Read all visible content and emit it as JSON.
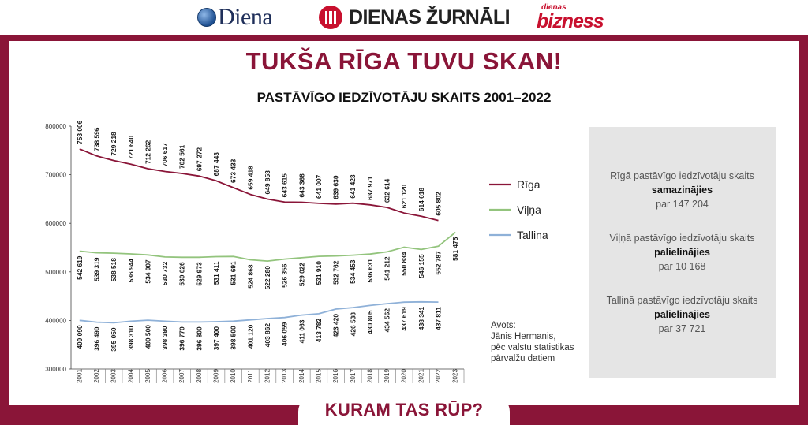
{
  "header": {
    "brands": [
      "Diena",
      "DIENAS ŽURNĀLI",
      "dienas",
      "bizness"
    ]
  },
  "title": "TUKŠA RĪGA TUVU SKAN!",
  "subtitle": "PASTĀVĪGO IEDZĪVOTĀJU SKAITS 2001–2022",
  "footer_tab": "KURAM TAS RŪP?",
  "source": [
    "Avots:",
    "Jānis Hermanis,",
    "pēc valstu statistikas",
    "pārvalžu datiem"
  ],
  "info": [
    {
      "line1": "Rīgā pastāvīgo iedzīvotāju skaits",
      "line2": "samazinājies",
      "line3": "par 147 204"
    },
    {
      "line1": "Viļņā pastāvīgo iedzīvotāju skaits",
      "line2": "palielinājies",
      "line3": "par 10 168"
    },
    {
      "line1": "Tallinā pastāvīgo iedzīvotāju skaits",
      "line2": "palielinājies",
      "line3": "par 37 721"
    }
  ],
  "chart_data": {
    "type": "line",
    "title": "PASTĀVĪGO IEDZĪVOTĀJU SKAITS 2001–2022",
    "x": [
      "2001",
      "2002",
      "2003",
      "2004",
      "2005",
      "2006",
      "2007",
      "2008",
      "2009",
      "2010",
      "2011",
      "2012",
      "2013",
      "2014",
      "2015",
      "2016",
      "2017",
      "2018",
      "2019",
      "2020",
      "2021",
      "2022",
      "2023"
    ],
    "ylim": [
      300000,
      800000
    ],
    "yticks": [
      300000,
      400000,
      500000,
      600000,
      700000,
      800000
    ],
    "ytick_labels": [
      "300000",
      "400000",
      "500000",
      "600000",
      "700000",
      "800000"
    ],
    "grid": false,
    "legend_position": "right",
    "series": [
      {
        "name": "Rīga",
        "color": "#8a1538",
        "values": [
          753006,
          738596,
          729218,
          721640,
          712262,
          706617,
          702561,
          697272,
          687443,
          673433,
          659418,
          649853,
          643615,
          643368,
          641007,
          639630,
          641423,
          637971,
          632614,
          621120,
          614618,
          605802,
          null
        ],
        "labels": [
          "753 006",
          "738 596",
          "729 218",
          "721 640",
          "712 262",
          "706 617",
          "702 561",
          "697 272",
          "687 443",
          "673 433",
          "659 418",
          "649 853",
          "643 615",
          "643 368",
          "641 007",
          "639 630",
          "641 423",
          "637 971",
          "632 614",
          "621 120",
          "614 618",
          "605 802",
          ""
        ]
      },
      {
        "name": "Viļņa",
        "color": "#93c47d",
        "values": [
          542619,
          539319,
          538518,
          536944,
          534907,
          530732,
          530026,
          529973,
          531411,
          531691,
          524868,
          522280,
          526356,
          529022,
          531910,
          532762,
          534453,
          536631,
          541212,
          550834,
          546155,
          552787,
          581475
        ],
        "labels": [
          "542 619",
          "539 319",
          "538 518",
          "536 944",
          "534 907",
          "530 732",
          "530 026",
          "529 973",
          "531 411",
          "531 691",
          "524 868",
          "522 280",
          "526 356",
          "529 022",
          "531 910",
          "532 762",
          "534 453",
          "536 631",
          "541 212",
          "550 834",
          "546 155",
          "552 787",
          "581 475"
        ]
      },
      {
        "name": "Tallina",
        "color": "#8fb1d8",
        "values": [
          400090,
          396490,
          395050,
          398310,
          400500,
          398380,
          396770,
          396800,
          397400,
          398500,
          401120,
          403862,
          406059,
          411063,
          413782,
          423420,
          426538,
          430805,
          434562,
          437619,
          438341,
          437811,
          null
        ],
        "labels": [
          "400 090",
          "396 490",
          "395 050",
          "398 310",
          "400 500",
          "398 380",
          "396 770",
          "396 800",
          "397 400",
          "398 500",
          "401 120",
          "403 862",
          "406 059",
          "411 063",
          "413 782",
          "423 420",
          "426 538",
          "430 805",
          "434 562",
          "437 619",
          "438 341",
          "437 811",
          ""
        ]
      }
    ]
  }
}
